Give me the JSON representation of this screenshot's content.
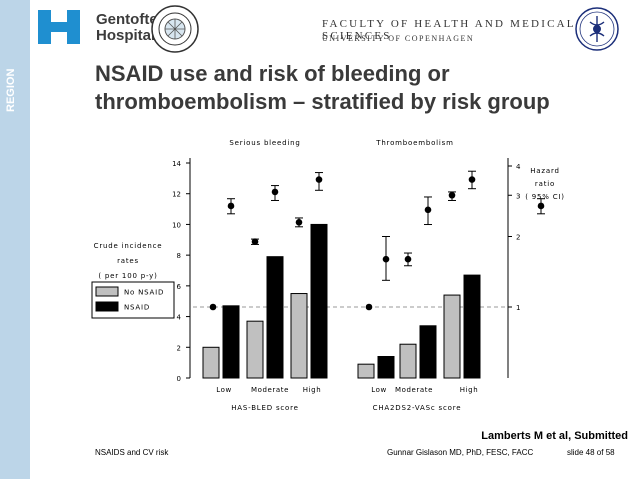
{
  "header": {
    "sidebar_text": "REGION",
    "hospital_name_line1": "Gentofte",
    "hospital_name_line2": "Hospital",
    "faculty": "FACULTY OF HEALTH AND MEDICAL SCIENCES",
    "university": "UNIVERSITY OF COPENHAGEN",
    "colors": {
      "sidebar": "#bcd5e8",
      "logo_blue": "#1f8fd0"
    }
  },
  "slide": {
    "title_line1": "NSAID use and risk of bleeding or",
    "title_line2": "thromboembolism – stratified by risk group",
    "citation": "Lamberts M et al, Submitted",
    "footer_left": "NSAIDS and CV risk",
    "footer_mid": "Gunnar Gislason MD, PhD, FESC, FACC",
    "footer_right": "slide 48 of 58"
  },
  "chart_data": {
    "type": "bar",
    "panels": [
      {
        "title": "Serious bleeding",
        "categories": [
          "Low",
          "Moderate",
          "High"
        ],
        "xlabel": "HAS-BLED score",
        "no_nsaid": [
          2.0,
          3.7,
          5.5
        ],
        "nsaid": [
          4.7,
          7.9,
          10.0
        ],
        "hazard_ratio": [
          {
            "value": 1.0,
            "reference": true
          },
          {
            "value": 2.7,
            "low": 2.5,
            "high": 2.9
          },
          {
            "value": 1.9,
            "low": 1.85,
            "high": 1.95
          },
          {
            "value": 3.1,
            "low": 2.85,
            "high": 3.3
          },
          {
            "value": 2.3,
            "low": 2.2,
            "high": 2.4
          },
          {
            "value": 3.5,
            "low": 3.15,
            "high": 3.75
          }
        ]
      },
      {
        "title": "Thromboembolism",
        "categories": [
          "Low",
          "Moderate",
          "High"
        ],
        "xlabel": "CHA2DS2-VASc score",
        "no_nsaid": [
          0.9,
          2.2,
          5.4
        ],
        "nsaid": [
          1.4,
          3.4,
          6.7
        ],
        "hazard_ratio": [
          {
            "value": 1.0,
            "reference": true
          },
          {
            "value": 1.6,
            "low": 1.3,
            "high": 2.0
          },
          {
            "value": 1.6,
            "low": 1.5,
            "high": 1.7
          },
          {
            "value": 2.6,
            "low": 2.25,
            "high": 2.95
          },
          {
            "value": 3.0,
            "low": 2.85,
            "high": 3.1
          },
          {
            "value": 3.5,
            "low": 3.2,
            "high": 3.8
          }
        ]
      }
    ],
    "hr_legend_marker": {
      "value": 2.7,
      "low": 2.5,
      "high": 2.9
    },
    "y_left": {
      "label_lines": [
        "Crude incidence",
        "rates",
        "( per 100 p-y)"
      ],
      "ylim": [
        0,
        14
      ],
      "ticks": [
        0,
        2,
        4,
        6,
        8,
        10,
        12,
        14
      ]
    },
    "y_right": {
      "label_lines": [
        "Hazard",
        "ratio",
        "( 95% CI)"
      ],
      "scale": "log",
      "ticks": [
        1,
        2,
        3,
        4
      ]
    },
    "legend": [
      {
        "label": "No NSAID",
        "color": "#c0c0c0"
      },
      {
        "label": "NSAID",
        "color": "#000000"
      }
    ],
    "reference_line": 1.0
  }
}
